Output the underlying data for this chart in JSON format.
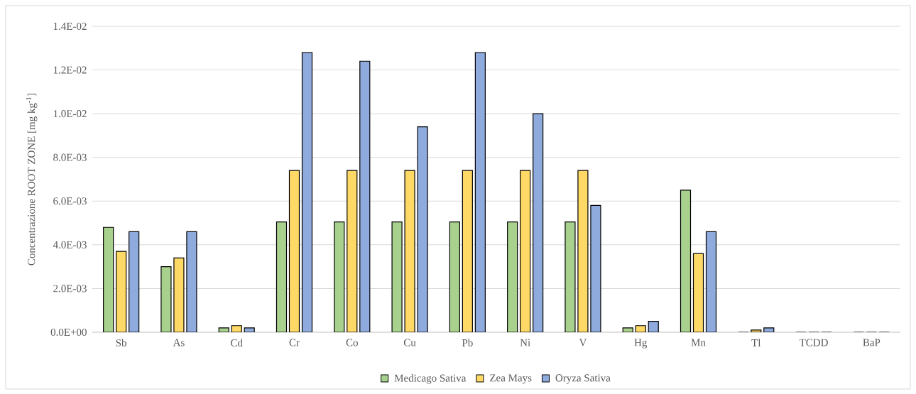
{
  "chart_data": {
    "type": "bar",
    "ylabel": "Concentrazione ROOT ZONE [mg kg$^{-1}$]",
    "categories": [
      "Sb",
      "As",
      "Cd",
      "Cr",
      "Co",
      "Cu",
      "Pb",
      "Ni",
      "V",
      "Hg",
      "Mn",
      "Tl",
      "TCDD",
      "BaP"
    ],
    "series": [
      {
        "name": "Medicago Sativa",
        "color": "#a9d18e",
        "values": [
          0.0048,
          0.003,
          0.0002,
          0.00505,
          0.00505,
          0.00505,
          0.00505,
          0.00505,
          0.00505,
          0.0002,
          0.0065,
          0,
          0,
          0
        ]
      },
      {
        "name": "Zea Mays",
        "color": "#ffd966",
        "values": [
          0.0037,
          0.0034,
          0.0003,
          0.0074,
          0.0074,
          0.0074,
          0.0074,
          0.0074,
          0.0074,
          0.0003,
          0.0036,
          0.0001,
          0,
          0
        ]
      },
      {
        "name": "Oryza Sativa",
        "color": "#8faadc",
        "values": [
          0.0046,
          0.0046,
          0.0002,
          0.0128,
          0.0124,
          0.0094,
          0.0128,
          0.01,
          0.0058,
          0.0005,
          0.0046,
          0.0002,
          0,
          0
        ]
      }
    ],
    "ylim": [
      0,
      0.014
    ],
    "yticks": [
      {
        "value": 0,
        "label": "0.0E+00"
      },
      {
        "value": 0.002,
        "label": "2.0E-03"
      },
      {
        "value": 0.004,
        "label": "4.0E-03"
      },
      {
        "value": 0.006,
        "label": "6.0E-03"
      },
      {
        "value": 0.008,
        "label": "8.0E-03"
      },
      {
        "value": 0.01,
        "label": "1.0E-02"
      },
      {
        "value": 0.012,
        "label": "1.2E-02"
      },
      {
        "value": 0.014,
        "label": "1.4E-02"
      }
    ],
    "grid": "y",
    "legend": "bottom"
  }
}
